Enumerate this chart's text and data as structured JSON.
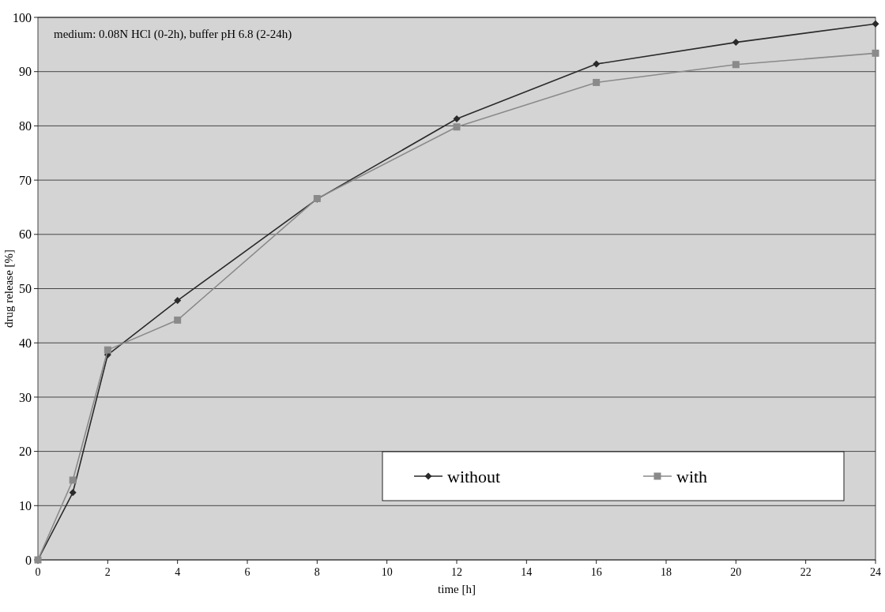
{
  "chart_data": {
    "type": "line",
    "xlabel": "time [h]",
    "ylabel": "drug release [%]",
    "annotations": [
      "medium: 0.08N HCl (0-2h), buffer pH 6.8 (2-24h)"
    ],
    "x": [
      0,
      1,
      2,
      4,
      8,
      12,
      16,
      20,
      24
    ],
    "series": [
      {
        "name": "without",
        "color": "#2a2a2a",
        "marker": "diamond",
        "values": [
          0,
          12.4,
          37.8,
          47.8,
          66.5,
          81.3,
          91.4,
          95.4,
          98.8
        ]
      },
      {
        "name": "with",
        "color": "#8a8a8a",
        "marker": "square",
        "values": [
          0,
          14.7,
          38.7,
          44.2,
          66.6,
          79.8,
          88,
          91.3,
          93.4
        ]
      }
    ],
    "xlim": [
      0,
      24
    ],
    "xticks": [
      0,
      2,
      4,
      6,
      8,
      10,
      12,
      14,
      16,
      18,
      20,
      22,
      24
    ],
    "ylim": [
      0,
      100
    ],
    "yticks": [
      0,
      10,
      20,
      30,
      40,
      50,
      60,
      70,
      80,
      90,
      100
    ],
    "grid": "y",
    "legend": "bottom right",
    "line_style": "solid"
  }
}
